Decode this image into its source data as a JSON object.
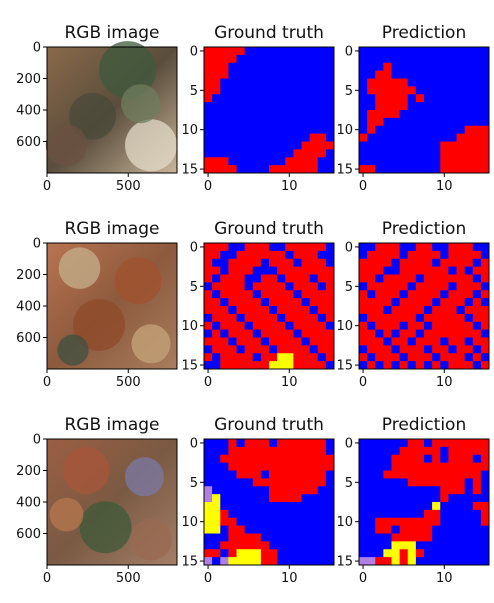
{
  "colors": {
    "0": "#0000ff",
    "1": "#ff0000",
    "2": "#ffff00",
    "3": "#b07fe6"
  },
  "chart_data": [
    {
      "type": "heatmap",
      "row": 1,
      "panels": [
        {
          "kind": "image",
          "title": "RGB image",
          "xticks": [
            "0",
            "500"
          ],
          "yticks": [
            "0",
            "200",
            "400",
            "600"
          ],
          "image_description": "satellite image of mountainous terrain with rivers and dry land"
        },
        {
          "kind": "grid",
          "title": "Ground truth",
          "xticks": [
            "0",
            "10"
          ],
          "yticks": [
            "0",
            "5",
            "10",
            "15"
          ],
          "rows": [
            "1111100000000000",
            "1111000000000000",
            "1110000000000000",
            "1110000000000000",
            "1100000000000000",
            "1100000000000000",
            "1000000000000000",
            "0000000000000000",
            "0000000000000000",
            "0000000000000000",
            "0000000000000000",
            "0000000000000110",
            "0000000000001111",
            "0000000000011110",
            "1110000000111100",
            "1111000011111100"
          ]
        },
        {
          "kind": "grid",
          "title": "Prediction",
          "xticks": [
            "0",
            "10"
          ],
          "yticks": [
            "0",
            "5",
            "10",
            "15"
          ],
          "rows": [
            "0000000000000000",
            "0000000000000000",
            "0001000000000000",
            "0011000000000000",
            "0111110000000000",
            "0111111000000000",
            "0011110100000000",
            "0011110000000000",
            "0111100000000000",
            "0110000000000000",
            "0100000000000111",
            "1000000000001111",
            "0000000000111111",
            "0000000000111111",
            "0000000000111111",
            "1100000000111111"
          ]
        }
      ]
    },
    {
      "type": "heatmap",
      "row": 2,
      "panels": [
        {
          "kind": "image",
          "title": "RGB image",
          "xticks": [
            "0",
            "500"
          ],
          "yticks": [
            "0",
            "200",
            "400",
            "600"
          ],
          "image_description": "satellite image of red-brown soil with dark drainage channels"
        },
        {
          "kind": "grid",
          "title": "Ground truth",
          "xticks": [
            "0",
            "10"
          ],
          "yticks": [
            "0",
            "5",
            "10",
            "15"
          ],
          "rows": [
            "1110011100111110",
            "1100111111011100",
            "1001111011101110",
            "1101110001111111",
            "1011100110111011",
            "0111101111011101",
            "1011110111101111",
            "1101111011110111",
            "1110111101111011",
            "0111011110111101",
            "1011101111011110",
            "0101110111101111",
            "1110111011110111",
            "0111011101111011",
            "1011110112211101",
            "0011111122211110"
          ]
        },
        {
          "kind": "grid",
          "title": "Prediction",
          "xticks": [
            "0",
            "10"
          ],
          "yticks": [
            "0",
            "5",
            "10",
            "15"
          ],
          "rows": [
            "0011100110011100",
            "0111101111011110",
            "1111011110111101",
            "1110011111101011",
            "1101111011111101",
            "0111110111101110",
            "1011101111011101",
            "1111011110111010",
            "1110111101110111",
            "0111111011111011",
            "1011101101111101",
            "1101011011111110",
            "1110110111011011",
            "0111011101101101",
            "1011101110111010",
            "0101010101011101"
          ]
        }
      ]
    },
    {
      "type": "heatmap",
      "row": 3,
      "panels": [
        {
          "kind": "image",
          "title": "RGB image",
          "xticks": [
            "0",
            "500"
          ],
          "yticks": [
            "0",
            "200",
            "400",
            "600"
          ],
          "image_description": "satellite image of reddish terrain with dark green vegetation lines"
        },
        {
          "kind": "grid",
          "title": "Ground truth",
          "xticks": [
            "0",
            "10"
          ],
          "yticks": [
            "0",
            "5",
            "10",
            "15"
          ],
          "rows": [
            "0001011101111110",
            "0001111111111110",
            "0011111111111111",
            "0001111111111111",
            "0000111011111110",
            "0000001111111110",
            "3000000011111100",
            "3200000011110000",
            "2200000000000000",
            "2210000000000000",
            "2211000000000000",
            "2201100000000000",
            "0001111000000000",
            "0011111100000000",
            "1101222110000000",
            "3032222110000000"
          ]
        },
        {
          "kind": "grid",
          "title": "Prediction",
          "xticks": [
            "0",
            "10"
          ],
          "yticks": [
            "0",
            "5",
            "10",
            "15"
          ],
          "rows": [
            "0000001101111111",
            "0000011111011111",
            "0000111101011101",
            "0000111111111111",
            "0001111111111110",
            "0000001111111010",
            "0000000000111010",
            "0000000000100000",
            "0000000002000011",
            "0000000011000001",
            "0011111111000001",
            "0011011110000000",
            "0000111110000000",
            "0000222000000000",
            "0002212100000000",
            "3311212000000000"
          ]
        }
      ]
    }
  ]
}
